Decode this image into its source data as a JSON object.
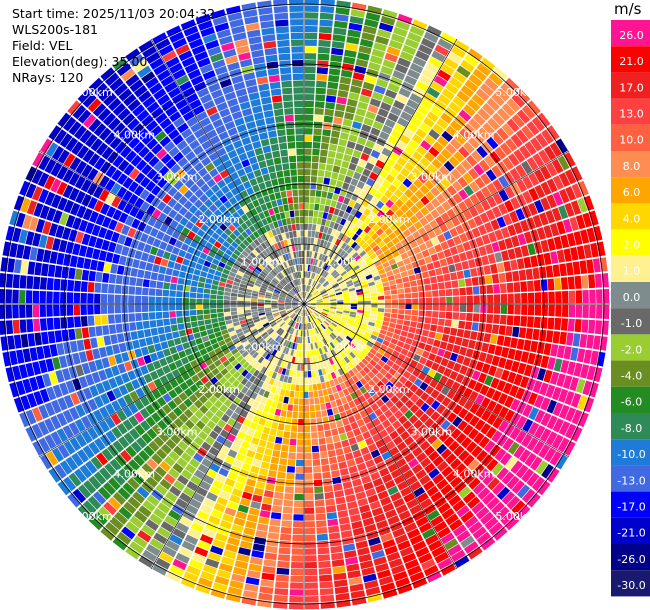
{
  "info": {
    "start_time": "Start time: 2025/11/03 20:04:32",
    "instrument": "WLS200s-181",
    "field": "Field: VEL",
    "elevation": "Elevation(deg): 35.00",
    "nrays": "NRays: 120"
  },
  "colorbar": {
    "unit": "m/s",
    "ticks": [
      "26.0",
      "21.0",
      "17.0",
      "13.0",
      "10.0",
      "8.0",
      "6.0",
      "4.0",
      "2.0",
      "1.0",
      "0.0",
      "-1.0",
      "-2.0",
      "-4.0",
      "-6.0",
      "-8.0",
      "-10.0",
      "-13.0",
      "-17.0",
      "-21.0",
      "-26.0",
      "-30.0"
    ],
    "colors": [
      "#ff1493",
      "#ff0000",
      "#ee2020",
      "#ff4040",
      "#ff6040",
      "#ff8c50",
      "#ffa500",
      "#ffd700",
      "#ffff00",
      "#fff090",
      "#7f8c8d",
      "#696969",
      "#9acd32",
      "#6b8e23",
      "#228b22",
      "#2e8b57",
      "#1e7bd8",
      "#4169e1",
      "#0000ff",
      "#0000cd",
      "#00008b",
      "#191970"
    ]
  },
  "chart_data": {
    "type": "heatmap",
    "projection": "polar PPI",
    "field": "VEL",
    "units": "m/s",
    "n_rays": 120,
    "elevation_deg": 35.0,
    "range_rings_km": [
      1,
      2,
      3,
      4,
      5
    ],
    "range_ring_labels": [
      "1.00km",
      "2.00km",
      "3.00km",
      "4.00km",
      "5.00km"
    ],
    "value_range": [
      -30,
      26
    ],
    "pattern": "approaching (negative) velocities toward the west/south-west, receding (positive) velocities toward the east/north-east; near-zero velocities within ~1.5 km",
    "grid": true
  }
}
